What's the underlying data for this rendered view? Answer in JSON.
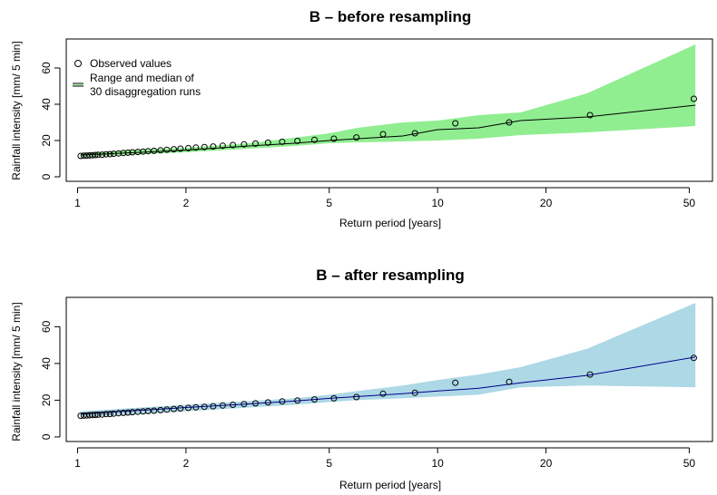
{
  "chart_data": [
    {
      "type": "area",
      "title": "B – before resampling",
      "xlabel": "Return period [years]",
      "ylabel": "Rainfall intensity [mm/ 5 min]",
      "x_scale": "log",
      "xlim": [
        0.93,
        58
      ],
      "ylim": [
        -2.5,
        76
      ],
      "xticks": [
        1,
        2,
        5,
        10,
        20,
        50
      ],
      "yticks": [
        0,
        20,
        40,
        60
      ],
      "grid": false,
      "legend": {
        "position": "top-left",
        "entries": [
          "Observed values",
          "Range and median of",
          "30 disaggregation runs"
        ]
      },
      "colors": {
        "band": "#90ee90",
        "median": "#000000",
        "points": "#000000"
      },
      "band": {
        "x": [
          1.02,
          1.5,
          2,
          3,
          4,
          5,
          6,
          8,
          10,
          13,
          17,
          26,
          52
        ],
        "upper": [
          13,
          15,
          16,
          18.5,
          21.5,
          24,
          27,
          30,
          31,
          34,
          35.5,
          46,
          73
        ],
        "lower": [
          11,
          12.5,
          13.5,
          15.5,
          17,
          18.5,
          19,
          19.5,
          20,
          21,
          23,
          24.5,
          28
        ]
      },
      "median": {
        "x": [
          1.02,
          1.5,
          2,
          3,
          4,
          5,
          6,
          8,
          10,
          13,
          17,
          26,
          52
        ],
        "y": [
          12,
          13.5,
          14.7,
          17,
          18.5,
          20,
          21,
          22.5,
          26,
          27,
          31,
          33,
          39.5
        ]
      },
      "observed": {
        "x": [
          1.02,
          1.04,
          1.06,
          1.08,
          1.1,
          1.12,
          1.14,
          1.17,
          1.2,
          1.23,
          1.26,
          1.3,
          1.34,
          1.38,
          1.42,
          1.47,
          1.52,
          1.57,
          1.63,
          1.7,
          1.77,
          1.85,
          1.93,
          2.03,
          2.13,
          2.25,
          2.38,
          2.53,
          2.7,
          2.9,
          3.12,
          3.38,
          3.7,
          4.08,
          4.55,
          5.15,
          5.95,
          7.05,
          8.65,
          11.2,
          15.8,
          26.5,
          51.5
        ],
        "y": [
          11.5,
          11.6,
          11.7,
          11.8,
          11.9,
          12.0,
          12.1,
          12.2,
          12.4,
          12.5,
          12.7,
          12.9,
          13.1,
          13.3,
          13.5,
          13.7,
          13.9,
          14.1,
          14.3,
          14.6,
          14.9,
          15.2,
          15.5,
          15.8,
          16.1,
          16.4,
          16.7,
          17.1,
          17.5,
          17.9,
          18.3,
          18.8,
          19.3,
          19.8,
          20.4,
          21.0,
          21.7,
          23.5,
          24.0,
          29.5,
          30.0,
          34.0,
          43.0
        ]
      }
    },
    {
      "type": "area",
      "title": "B – after resampling",
      "xlabel": "Return period [years]",
      "ylabel": "Rainfall intensity [mm/ 5 min]",
      "x_scale": "log",
      "xlim": [
        0.93,
        58
      ],
      "ylim": [
        -2.5,
        76
      ],
      "xticks": [
        1,
        2,
        5,
        10,
        20,
        50
      ],
      "yticks": [
        0,
        20,
        40,
        60
      ],
      "grid": false,
      "legend": null,
      "colors": {
        "band": "#add8e6",
        "median": "#00008b",
        "points": "#000000"
      },
      "band": {
        "x": [
          1.02,
          1.5,
          2,
          3,
          4,
          5,
          6,
          8,
          10,
          13,
          17,
          26,
          52
        ],
        "upper": [
          14,
          16,
          17.5,
          19.5,
          21,
          23,
          25,
          28,
          31,
          34,
          38,
          48,
          73
        ],
        "lower": [
          11,
          12.5,
          14,
          16,
          17.5,
          19,
          20,
          21,
          22,
          23,
          27,
          28,
          27
        ]
      },
      "median": {
        "x": [
          1.02,
          1.5,
          2,
          3,
          4,
          5,
          6,
          8,
          10,
          13,
          17,
          26,
          52
        ],
        "y": [
          12.5,
          14.5,
          16,
          18,
          19.5,
          21,
          22,
          23.5,
          25,
          26.5,
          29.5,
          33.5,
          43.5
        ]
      },
      "observed": {
        "x": [
          1.02,
          1.04,
          1.06,
          1.08,
          1.1,
          1.12,
          1.14,
          1.17,
          1.2,
          1.23,
          1.26,
          1.3,
          1.34,
          1.38,
          1.42,
          1.47,
          1.52,
          1.57,
          1.63,
          1.7,
          1.77,
          1.85,
          1.93,
          2.03,
          2.13,
          2.25,
          2.38,
          2.53,
          2.7,
          2.9,
          3.12,
          3.38,
          3.7,
          4.08,
          4.55,
          5.15,
          5.95,
          7.05,
          8.65,
          11.2,
          15.8,
          26.5,
          51.5
        ],
        "y": [
          11.5,
          11.6,
          11.7,
          11.8,
          11.9,
          12.0,
          12.1,
          12.2,
          12.4,
          12.5,
          12.7,
          12.9,
          13.1,
          13.3,
          13.5,
          13.7,
          13.9,
          14.1,
          14.3,
          14.6,
          14.9,
          15.2,
          15.5,
          15.8,
          16.1,
          16.4,
          16.7,
          17.1,
          17.5,
          17.9,
          18.3,
          18.8,
          19.3,
          19.8,
          20.4,
          21.0,
          21.7,
          23.5,
          24.0,
          29.5,
          30.0,
          34.0,
          43.0
        ]
      }
    }
  ]
}
